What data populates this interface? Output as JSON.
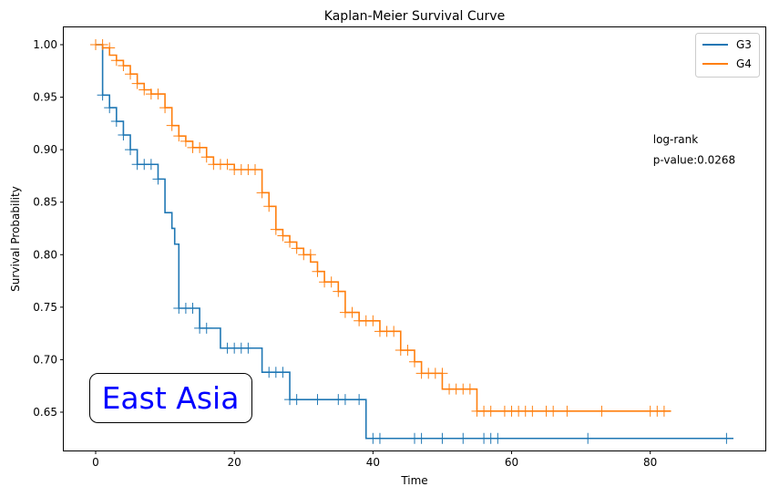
{
  "chart_data": {
    "type": "line",
    "title": "Kaplan-Meier Survival Curve",
    "xlabel": "Time",
    "ylabel": "Survival Probability",
    "xlim": [
      -4.6,
      96.6
    ],
    "ylim": [
      0.6135,
      1.0165
    ],
    "xticks": [
      0,
      20,
      40,
      60,
      80
    ],
    "yticks": [
      0.65,
      0.7,
      0.75,
      0.8,
      0.85,
      0.9,
      0.95,
      1.0
    ],
    "xtick_labels": [
      "0",
      "20",
      "40",
      "60",
      "80"
    ],
    "ytick_labels": [
      "0.65",
      "0.70",
      "0.75",
      "0.80",
      "0.85",
      "0.90",
      "0.95",
      "1.00"
    ],
    "grid": false,
    "legend_position": "top-right",
    "annotation": {
      "line1": "log-rank",
      "line2": "p-value:0.0268",
      "x": 80.4,
      "y1": 0.906,
      "y2": 0.896
    },
    "region_label": "East Asia",
    "series": [
      {
        "name": "G3",
        "color": "#1f77b4",
        "steps": [
          [
            0,
            1.0
          ],
          [
            1,
            0.952
          ],
          [
            2,
            0.94
          ],
          [
            3,
            0.927
          ],
          [
            4,
            0.914
          ],
          [
            5,
            0.9
          ],
          [
            6,
            0.886
          ],
          [
            9,
            0.872
          ],
          [
            10,
            0.84
          ],
          [
            11,
            0.825
          ],
          [
            11.4,
            0.81
          ],
          [
            12,
            0.749
          ],
          [
            15,
            0.73
          ],
          [
            18,
            0.711
          ],
          [
            24,
            0.688
          ],
          [
            28,
            0.662
          ],
          [
            39,
            0.625
          ],
          [
            92,
            0.625
          ]
        ],
        "censored": [
          [
            1,
            0.952
          ],
          [
            2,
            0.94
          ],
          [
            3,
            0.927
          ],
          [
            4,
            0.914
          ],
          [
            5,
            0.9
          ],
          [
            6,
            0.886
          ],
          [
            7,
            0.886
          ],
          [
            8,
            0.886
          ],
          [
            9,
            0.872
          ],
          [
            12,
            0.749
          ],
          [
            13,
            0.749
          ],
          [
            14,
            0.749
          ],
          [
            15,
            0.73
          ],
          [
            16,
            0.73
          ],
          [
            19,
            0.711
          ],
          [
            20,
            0.711
          ],
          [
            21,
            0.711
          ],
          [
            22,
            0.711
          ],
          [
            25,
            0.688
          ],
          [
            26,
            0.688
          ],
          [
            27,
            0.688
          ],
          [
            28,
            0.662
          ],
          [
            29,
            0.662
          ],
          [
            32,
            0.662
          ],
          [
            35,
            0.662
          ],
          [
            36,
            0.662
          ],
          [
            38,
            0.662
          ],
          [
            40,
            0.625
          ],
          [
            41,
            0.625
          ],
          [
            46,
            0.625
          ],
          [
            47,
            0.625
          ],
          [
            50,
            0.625
          ],
          [
            53,
            0.625
          ],
          [
            56,
            0.625
          ],
          [
            57,
            0.625
          ],
          [
            58,
            0.625
          ],
          [
            71,
            0.625
          ],
          [
            91,
            0.625
          ]
        ]
      },
      {
        "name": "G4",
        "color": "#ff7f0e",
        "steps": [
          [
            0,
            1.0
          ],
          [
            1,
            0.997
          ],
          [
            2,
            0.99
          ],
          [
            3,
            0.985
          ],
          [
            4,
            0.98
          ],
          [
            5,
            0.972
          ],
          [
            6,
            0.963
          ],
          [
            7,
            0.957
          ],
          [
            8,
            0.953
          ],
          [
            10,
            0.94
          ],
          [
            11,
            0.923
          ],
          [
            12,
            0.913
          ],
          [
            13,
            0.908
          ],
          [
            14,
            0.902
          ],
          [
            16,
            0.893
          ],
          [
            17,
            0.886
          ],
          [
            20,
            0.881
          ],
          [
            24,
            0.859
          ],
          [
            25,
            0.846
          ],
          [
            26,
            0.824
          ],
          [
            27,
            0.818
          ],
          [
            28,
            0.812
          ],
          [
            29,
            0.806
          ],
          [
            30,
            0.8
          ],
          [
            31,
            0.793
          ],
          [
            32,
            0.784
          ],
          [
            33,
            0.774
          ],
          [
            35,
            0.765
          ],
          [
            36,
            0.745
          ],
          [
            38,
            0.737
          ],
          [
            41,
            0.727
          ],
          [
            44,
            0.709
          ],
          [
            46,
            0.698
          ],
          [
            47,
            0.687
          ],
          [
            50,
            0.672
          ],
          [
            55,
            0.651
          ],
          [
            83,
            0.651
          ]
        ],
        "censored": [
          [
            0,
            1.0
          ],
          [
            1,
            1.0
          ],
          [
            2,
            0.997
          ],
          [
            3,
            0.985
          ],
          [
            4,
            0.98
          ],
          [
            5,
            0.972
          ],
          [
            6,
            0.963
          ],
          [
            7,
            0.957
          ],
          [
            8,
            0.953
          ],
          [
            9,
            0.953
          ],
          [
            10,
            0.94
          ],
          [
            11,
            0.923
          ],
          [
            12,
            0.913
          ],
          [
            13,
            0.908
          ],
          [
            14,
            0.902
          ],
          [
            15,
            0.902
          ],
          [
            16,
            0.893
          ],
          [
            17,
            0.886
          ],
          [
            18,
            0.886
          ],
          [
            19,
            0.886
          ],
          [
            20,
            0.881
          ],
          [
            21,
            0.881
          ],
          [
            22,
            0.881
          ],
          [
            23,
            0.881
          ],
          [
            24,
            0.859
          ],
          [
            25,
            0.846
          ],
          [
            26,
            0.824
          ],
          [
            27,
            0.818
          ],
          [
            28,
            0.812
          ],
          [
            29,
            0.806
          ],
          [
            30,
            0.8
          ],
          [
            31,
            0.8
          ],
          [
            32,
            0.784
          ],
          [
            33,
            0.774
          ],
          [
            34,
            0.774
          ],
          [
            35,
            0.765
          ],
          [
            36,
            0.745
          ],
          [
            37,
            0.745
          ],
          [
            38,
            0.737
          ],
          [
            39,
            0.737
          ],
          [
            40,
            0.737
          ],
          [
            41,
            0.727
          ],
          [
            42,
            0.727
          ],
          [
            43,
            0.727
          ],
          [
            44,
            0.709
          ],
          [
            45,
            0.709
          ],
          [
            46,
            0.698
          ],
          [
            47,
            0.687
          ],
          [
            48,
            0.687
          ],
          [
            49,
            0.687
          ],
          [
            50,
            0.687
          ],
          [
            51,
            0.672
          ],
          [
            52,
            0.672
          ],
          [
            53,
            0.672
          ],
          [
            54,
            0.672
          ],
          [
            55,
            0.651
          ],
          [
            56,
            0.651
          ],
          [
            57,
            0.651
          ],
          [
            59,
            0.651
          ],
          [
            60,
            0.651
          ],
          [
            61,
            0.651
          ],
          [
            62,
            0.651
          ],
          [
            63,
            0.651
          ],
          [
            65,
            0.651
          ],
          [
            66,
            0.651
          ],
          [
            68,
            0.651
          ],
          [
            73,
            0.651
          ],
          [
            80,
            0.651
          ],
          [
            81,
            0.651
          ],
          [
            82,
            0.651
          ]
        ]
      }
    ]
  }
}
